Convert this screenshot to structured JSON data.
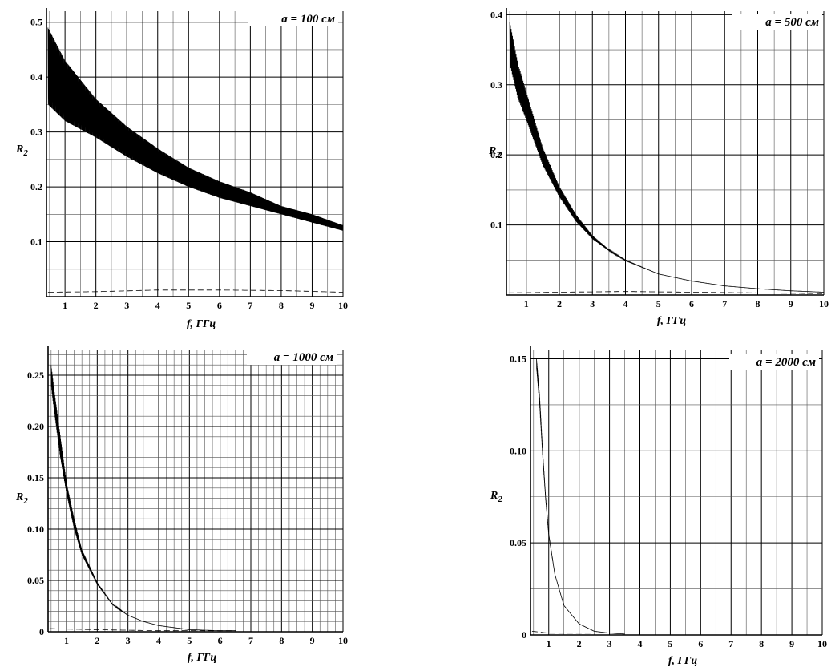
{
  "chart_data": [
    {
      "type": "line",
      "annotation": "a = 100 см",
      "xlabel": "f, ГГц",
      "ylabel_main": "R",
      "ylabel_sub": "2",
      "xlim": [
        0.4,
        10
      ],
      "ylim": [
        0,
        0.52
      ],
      "xticks": [
        "1",
        "2",
        "3",
        "4",
        "5",
        "6",
        "7",
        "8",
        "9",
        "10"
      ],
      "yticks": [
        {
          "v": 0.1,
          "label": "0.1"
        },
        {
          "v": 0.2,
          "label": "0.2"
        },
        {
          "v": 0.3,
          "label": "0.3"
        },
        {
          "v": 0.4,
          "label": "0.4"
        },
        {
          "v": 0.5,
          "label": "0.5"
        }
      ],
      "x_grid_step": 0.5,
      "y_grid_step": 0.05,
      "series": [
        {
          "style": "solid-oscillating",
          "x": [
            0.45,
            1,
            2,
            3,
            4,
            5,
            6,
            7,
            8,
            9,
            10
          ],
          "upper": [
            0.49,
            0.43,
            0.36,
            0.31,
            0.27,
            0.235,
            0.21,
            0.19,
            0.165,
            0.15,
            0.13
          ],
          "lower": [
            0.35,
            0.32,
            0.29,
            0.255,
            0.225,
            0.2,
            0.18,
            0.165,
            0.15,
            0.135,
            0.12
          ]
        },
        {
          "style": "dashed",
          "x": [
            0.45,
            2,
            4,
            6,
            8,
            10
          ],
          "y": [
            0.008,
            0.009,
            0.012,
            0.012,
            0.011,
            0.008
          ]
        }
      ]
    },
    {
      "type": "line",
      "annotation": "a = 500 см",
      "xlabel": "f, ГГц",
      "ylabel_main": "R",
      "ylabel_sub": "2",
      "xlim": [
        0.4,
        10
      ],
      "ylim": [
        0,
        0.405
      ],
      "xticks": [
        "1",
        "2",
        "3",
        "4",
        "5",
        "6",
        "7",
        "8",
        "9",
        "10"
      ],
      "yticks": [
        {
          "v": 0.1,
          "label": "0.1"
        },
        {
          "v": 0.2,
          "label": "0.2"
        },
        {
          "v": 0.3,
          "label": "0.3"
        },
        {
          "v": 0.4,
          "label": "0.4"
        }
      ],
      "x_grid_step": 0.5,
      "y_grid_step": 0.05,
      "series": [
        {
          "style": "solid-oscillating",
          "x": [
            0.5,
            0.75,
            1,
            1.5,
            2,
            2.5,
            3,
            3.5,
            4,
            5,
            6,
            7,
            8,
            9,
            10
          ],
          "upper": [
            0.39,
            0.33,
            0.29,
            0.21,
            0.155,
            0.115,
            0.085,
            0.065,
            0.05,
            0.03,
            0.02,
            0.013,
            0.009,
            0.006,
            0.004
          ],
          "lower": [
            0.33,
            0.28,
            0.25,
            0.185,
            0.14,
            0.105,
            0.08,
            0.063,
            0.049,
            0.03,
            0.02,
            0.013,
            0.009,
            0.006,
            0.004
          ]
        },
        {
          "style": "dashed",
          "x": [
            0.45,
            2,
            4,
            6,
            8,
            10
          ],
          "y": [
            0.003,
            0.004,
            0.005,
            0.004,
            0.003,
            0.002
          ]
        }
      ]
    },
    {
      "type": "line",
      "annotation": "a = 1000 см",
      "xlabel": "f, ГГц",
      "ylabel_main": "R",
      "ylabel_sub": "2",
      "xlim": [
        0.4,
        10
      ],
      "ylim": [
        0,
        0.275
      ],
      "xticks": [
        "1",
        "2",
        "3",
        "4",
        "5",
        "6",
        "7",
        "8",
        "9",
        "10"
      ],
      "yticks": [
        {
          "v": 0,
          "label": "0"
        },
        {
          "v": 0.05,
          "label": "0.05"
        },
        {
          "v": 0.1,
          "label": "0.10"
        },
        {
          "v": 0.15,
          "label": "0.15"
        },
        {
          "v": 0.2,
          "label": "0.20"
        },
        {
          "v": 0.25,
          "label": "0.25"
        }
      ],
      "x_grid_step": 0.25,
      "y_grid_step": 0.01,
      "series": [
        {
          "style": "solid-oscillating",
          "x": [
            0.5,
            0.6,
            0.8,
            1,
            1.25,
            1.5,
            2,
            2.5,
            3,
            3.5,
            4,
            5,
            6,
            6.5
          ],
          "upper": [
            0.26,
            0.235,
            0.19,
            0.145,
            0.11,
            0.08,
            0.048,
            0.027,
            0.016,
            0.01,
            0.006,
            0.002,
            0.001,
            0.001
          ],
          "lower": [
            0.24,
            0.215,
            0.17,
            0.135,
            0.1,
            0.075,
            0.046,
            0.026,
            0.016,
            0.01,
            0.006,
            0.002,
            0.001,
            0.001
          ]
        },
        {
          "style": "dashed",
          "x": [
            0.45,
            2,
            4,
            6,
            6.5
          ],
          "y": [
            0.003,
            0.002,
            0.001,
            0.001,
            0.001
          ]
        }
      ]
    },
    {
      "type": "line",
      "annotation": "a = 2000 см",
      "xlabel": "f, ГГц",
      "ylabel_main": "R",
      "ylabel_sub": "2",
      "xlim": [
        0.4,
        10
      ],
      "ylim": [
        0,
        0.155
      ],
      "xticks": [
        "1",
        "2",
        "3",
        "4",
        "5",
        "6",
        "7",
        "8",
        "9",
        "10"
      ],
      "yticks": [
        {
          "v": 0,
          "label": "0"
        },
        {
          "v": 0.05,
          "label": "0.05"
        },
        {
          "v": 0.1,
          "label": "0.10"
        },
        {
          "v": 0.15,
          "label": "0.15"
        }
      ],
      "x_grid_step": 0.5,
      "y_grid_step": 0.025,
      "series": [
        {
          "style": "solid-oscillating",
          "x": [
            0.6,
            0.7,
            0.8,
            0.9,
            1,
            1.2,
            1.5,
            2,
            2.5,
            3,
            3.5
          ],
          "upper": [
            0.15,
            0.13,
            0.1,
            0.075,
            0.055,
            0.033,
            0.016,
            0.006,
            0.002,
            0.001,
            0.0005
          ],
          "lower": [
            0.145,
            0.125,
            0.097,
            0.073,
            0.054,
            0.033,
            0.016,
            0.006,
            0.002,
            0.001,
            0.0005
          ]
        },
        {
          "style": "dashed",
          "x": [
            0.45,
            1,
            2,
            2.5
          ],
          "y": [
            0.002,
            0.001,
            0.001,
            0.001
          ]
        }
      ]
    }
  ]
}
